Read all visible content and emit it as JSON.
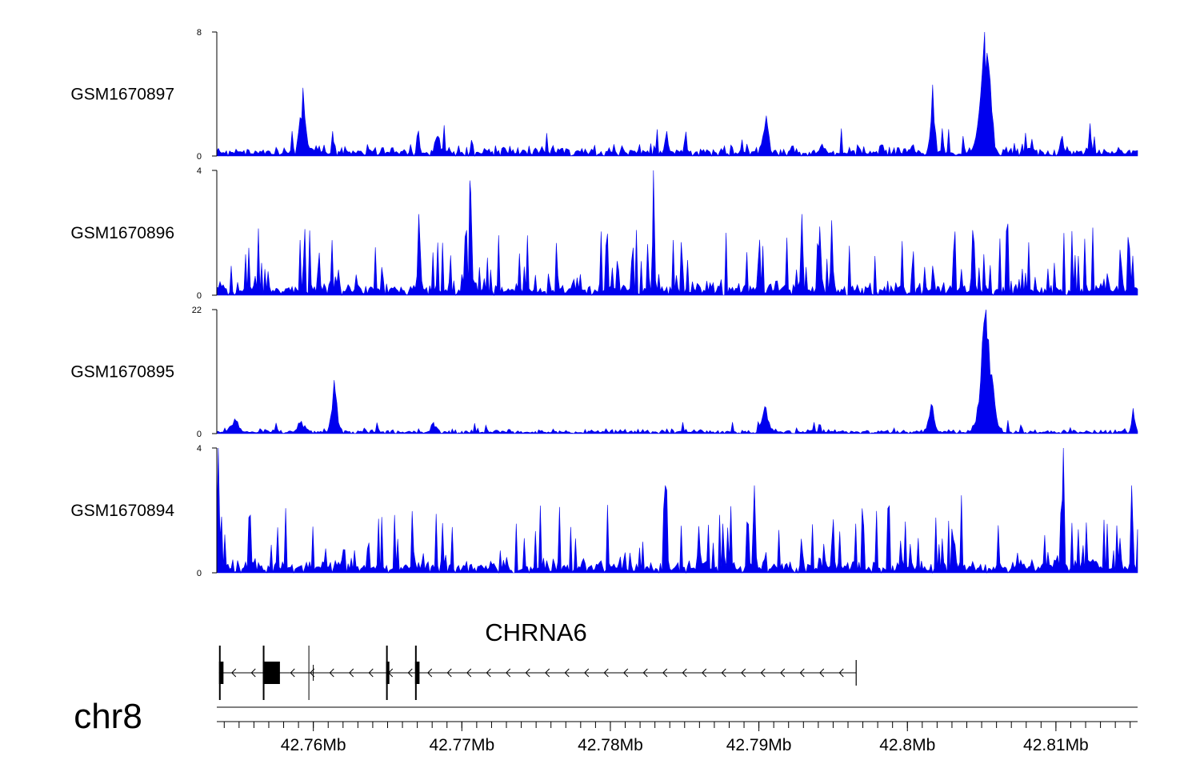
{
  "chart_data": {
    "type": "area",
    "title": "",
    "chromosome": "chr8",
    "x_unit": "Mb",
    "xlim": [
      42.7535,
      42.8155
    ],
    "x_ticks": [
      {
        "value": 42.76,
        "label": "42.76Mb"
      },
      {
        "value": 42.77,
        "label": "42.77Mb"
      },
      {
        "value": 42.78,
        "label": "42.78Mb"
      },
      {
        "value": 42.79,
        "label": "42.79Mb"
      },
      {
        "value": 42.8,
        "label": "42.8Mb"
      },
      {
        "value": 42.81,
        "label": "42.81Mb"
      }
    ],
    "minor_tick_step": 0.001,
    "fill_color": "#0000ee",
    "tracks": [
      {
        "name": "GSM1670897",
        "ylim": [
          0,
          8
        ],
        "ymin_label": "0",
        "ymax_label": "8",
        "baseline": 0.3,
        "noise": 0.7,
        "spike_density": 0.08,
        "spike_height": 1.8,
        "peaks": [
          {
            "x": 42.7593,
            "h": 4.4,
            "w": 0.00025
          },
          {
            "x": 42.7613,
            "h": 1.6,
            "w": 0.0001
          },
          {
            "x": 42.7683,
            "h": 1.2,
            "w": 0.0002
          },
          {
            "x": 42.7838,
            "h": 1.6,
            "w": 0.0001
          },
          {
            "x": 42.7905,
            "h": 2.6,
            "w": 0.0002
          },
          {
            "x": 42.8017,
            "h": 4.6,
            "w": 0.0002
          },
          {
            "x": 42.8052,
            "h": 8.0,
            "w": 0.00045
          },
          {
            "x": 42.8123,
            "h": 2.1,
            "w": 0.0001
          }
        ]
      },
      {
        "name": "GSM1670896",
        "ylim": [
          0,
          4
        ],
        "ymin_label": "0",
        "ymax_label": "4",
        "baseline": 0.2,
        "noise": 0.4,
        "spike_density": 0.22,
        "spike_height": 2.0,
        "peaks": [
          {
            "x": 42.7671,
            "h": 2.6,
            "w": 0.0001
          },
          {
            "x": 42.7706,
            "h": 3.3,
            "w": 0.0001
          },
          {
            "x": 42.7829,
            "h": 4.0,
            "w": 0.0001
          },
          {
            "x": 42.7929,
            "h": 2.6,
            "w": 0.0001
          },
          {
            "x": 42.7941,
            "h": 2.2,
            "w": 0.0001
          },
          {
            "x": 42.7949,
            "h": 2.4,
            "w": 0.0001
          }
        ]
      },
      {
        "name": "GSM1670895",
        "ylim": [
          0,
          22
        ],
        "ymin_label": "0",
        "ymax_label": "22",
        "baseline": 0.3,
        "noise": 0.8,
        "spike_density": 0.05,
        "spike_height": 2.0,
        "peaks": [
          {
            "x": 42.7547,
            "h": 2.6,
            "w": 0.00035
          },
          {
            "x": 42.7592,
            "h": 2.2,
            "w": 0.0003
          },
          {
            "x": 42.7614,
            "h": 9.5,
            "w": 0.00025
          },
          {
            "x": 42.7681,
            "h": 2.0,
            "w": 0.0002
          },
          {
            "x": 42.7904,
            "h": 4.8,
            "w": 0.0003
          },
          {
            "x": 42.8016,
            "h": 5.2,
            "w": 0.00025
          },
          {
            "x": 42.8053,
            "h": 22.0,
            "w": 0.0005
          },
          {
            "x": 42.8152,
            "h": 4.5,
            "w": 0.00015
          }
        ]
      },
      {
        "name": "GSM1670894",
        "ylim": [
          0,
          4
        ],
        "ymin_label": "0",
        "ymax_label": "4",
        "baseline": 0.2,
        "noise": 0.4,
        "spike_density": 0.25,
        "spike_height": 2.0,
        "peaks": [
          {
            "x": 42.7536,
            "h": 4.0,
            "w": 0.0001
          },
          {
            "x": 42.7837,
            "h": 2.8,
            "w": 0.0001
          },
          {
            "x": 42.7897,
            "h": 2.8,
            "w": 0.0001
          },
          {
            "x": 42.8105,
            "h": 4.0,
            "w": 0.0001
          },
          {
            "x": 42.8151,
            "h": 2.8,
            "w": 0.0001
          }
        ]
      }
    ],
    "gene": {
      "name": "CHRNA6",
      "strand": "-",
      "start": 42.75365,
      "end": 42.79655,
      "exons": [
        {
          "start": 42.75365,
          "end": 42.75395,
          "thick": true
        },
        {
          "start": 42.7566,
          "end": 42.75775,
          "thick": true
        },
        {
          "start": 42.7597,
          "end": 42.75978,
          "thick": false
        },
        {
          "start": 42.7649,
          "end": 42.76512,
          "thick": true
        },
        {
          "start": 42.76685,
          "end": 42.76715,
          "thick": true
        }
      ]
    }
  }
}
